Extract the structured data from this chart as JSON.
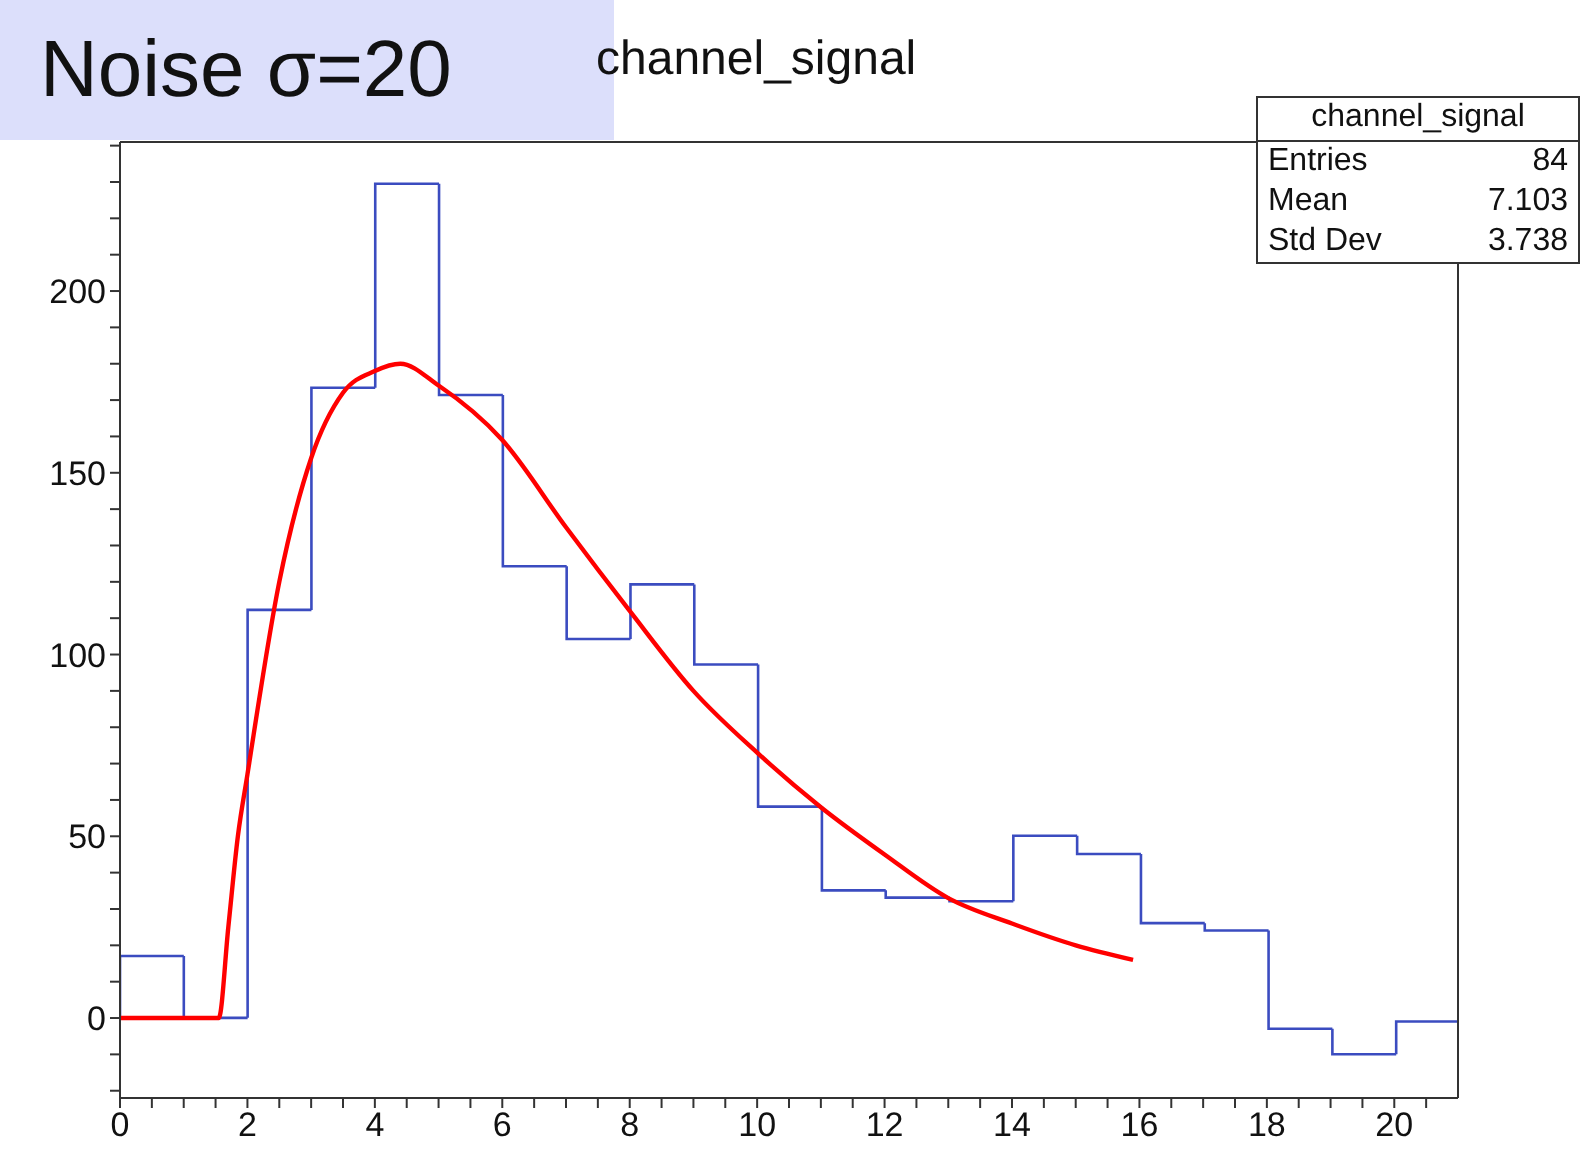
{
  "chart_data": {
    "type": "histogram",
    "title": "channel_signal",
    "annotations": [
      "Noise σ=20",
      "channel_signal",
      "Entries",
      "84",
      "Mean",
      "7.103",
      "Std Dev",
      "3.738"
    ],
    "bins": [
      0,
      1,
      2,
      3,
      4,
      5,
      6,
      7,
      8,
      9,
      10,
      11,
      12,
      13,
      14,
      15,
      16,
      17,
      18,
      19,
      20,
      21
    ],
    "series": [
      {
        "type": "histogram",
        "color": "#3b4cc0",
        "values": [
          17,
          0,
          112,
          173,
          229,
          171,
          124,
          104,
          119,
          97,
          58,
          35,
          33,
          32,
          50,
          45,
          26,
          24,
          -3,
          -10,
          -1
        ]
      },
      {
        "type": "line",
        "color": "#ff0000",
        "x": [
          0,
          1.55,
          1.7,
          1.85,
          2,
          2.5,
          3,
          3.5,
          4,
          4.4,
          5,
          6,
          7,
          8,
          9,
          10,
          11,
          12,
          13,
          14,
          15,
          15.9
        ],
        "values": [
          0,
          0,
          25,
          50,
          67,
          120,
          154,
          172,
          178,
          180,
          174,
          159,
          135,
          112,
          90,
          73,
          58,
          45,
          33,
          26,
          20,
          16
        ]
      }
    ],
    "xlim": [
      0,
      21
    ],
    "xticks": [
      0,
      {
        "value": 0.5,
        "label": null
      },
      {
        "value": 1,
        "label": null
      },
      {
        "value": 1.5,
        "label": null
      },
      2,
      {
        "value": 2.5,
        "label": null
      },
      {
        "value": 3,
        "label": null
      },
      {
        "value": 3.5,
        "label": null
      },
      4,
      {
        "value": 4.5,
        "label": null
      },
      {
        "value": 5,
        "label": null
      },
      {
        "value": 5.5,
        "label": null
      },
      6,
      {
        "value": 6.5,
        "label": null
      },
      {
        "value": 7,
        "label": null
      },
      {
        "value": 7.5,
        "label": null
      },
      8,
      {
        "value": 8.5,
        "label": null
      },
      {
        "value": 9,
        "label": null
      },
      {
        "value": 9.5,
        "label": null
      },
      10,
      {
        "value": 10.5,
        "label": null
      },
      {
        "value": 11,
        "label": null
      },
      {
        "value": 11.5,
        "label": null
      },
      12,
      {
        "value": 12.5,
        "label": null
      },
      {
        "value": 13,
        "label": null
      },
      {
        "value": 13.5,
        "label": null
      },
      14,
      {
        "value": 14.5,
        "label": null
      },
      {
        "value": 15,
        "label": null
      },
      {
        "value": 15.5,
        "label": null
      },
      16,
      {
        "value": 16.5,
        "label": null
      },
      {
        "value": 17,
        "label": null
      },
      {
        "value": 17.5,
        "label": null
      },
      18,
      {
        "value": 18.5,
        "label": null
      },
      {
        "value": 19,
        "label": null
      },
      {
        "value": 19.5,
        "label": null
      },
      20,
      {
        "value": 20.5,
        "label": null
      }
    ],
    "ylim": [
      -22,
      241
    ],
    "yticks": [
      {
        "value": -20,
        "label": null
      },
      {
        "value": -10,
        "label": null
      },
      0,
      {
        "value": 10,
        "label": null
      },
      {
        "value": 20,
        "label": null
      },
      {
        "value": 30,
        "label": null
      },
      {
        "value": 40,
        "label": null
      },
      50,
      {
        "value": 60,
        "label": null
      },
      {
        "value": 70,
        "label": null
      },
      {
        "value": 80,
        "label": null
      },
      {
        "value": 90,
        "label": null
      },
      100,
      {
        "value": 110,
        "label": null
      },
      {
        "value": 120,
        "label": null
      },
      {
        "value": 130,
        "label": null
      },
      {
        "value": 140,
        "label": null
      },
      150,
      {
        "value": 160,
        "label": null
      },
      {
        "value": 170,
        "label": null
      },
      {
        "value": 180,
        "label": null
      },
      {
        "value": 190,
        "label": null
      },
      200,
      {
        "value": 210,
        "label": null
      },
      {
        "value": 220,
        "label": null
      },
      {
        "value": 230,
        "label": null
      },
      {
        "value": 240,
        "label": null
      }
    ],
    "grid": false,
    "legend": false,
    "marker": "none",
    "line_style": "solid"
  }
}
